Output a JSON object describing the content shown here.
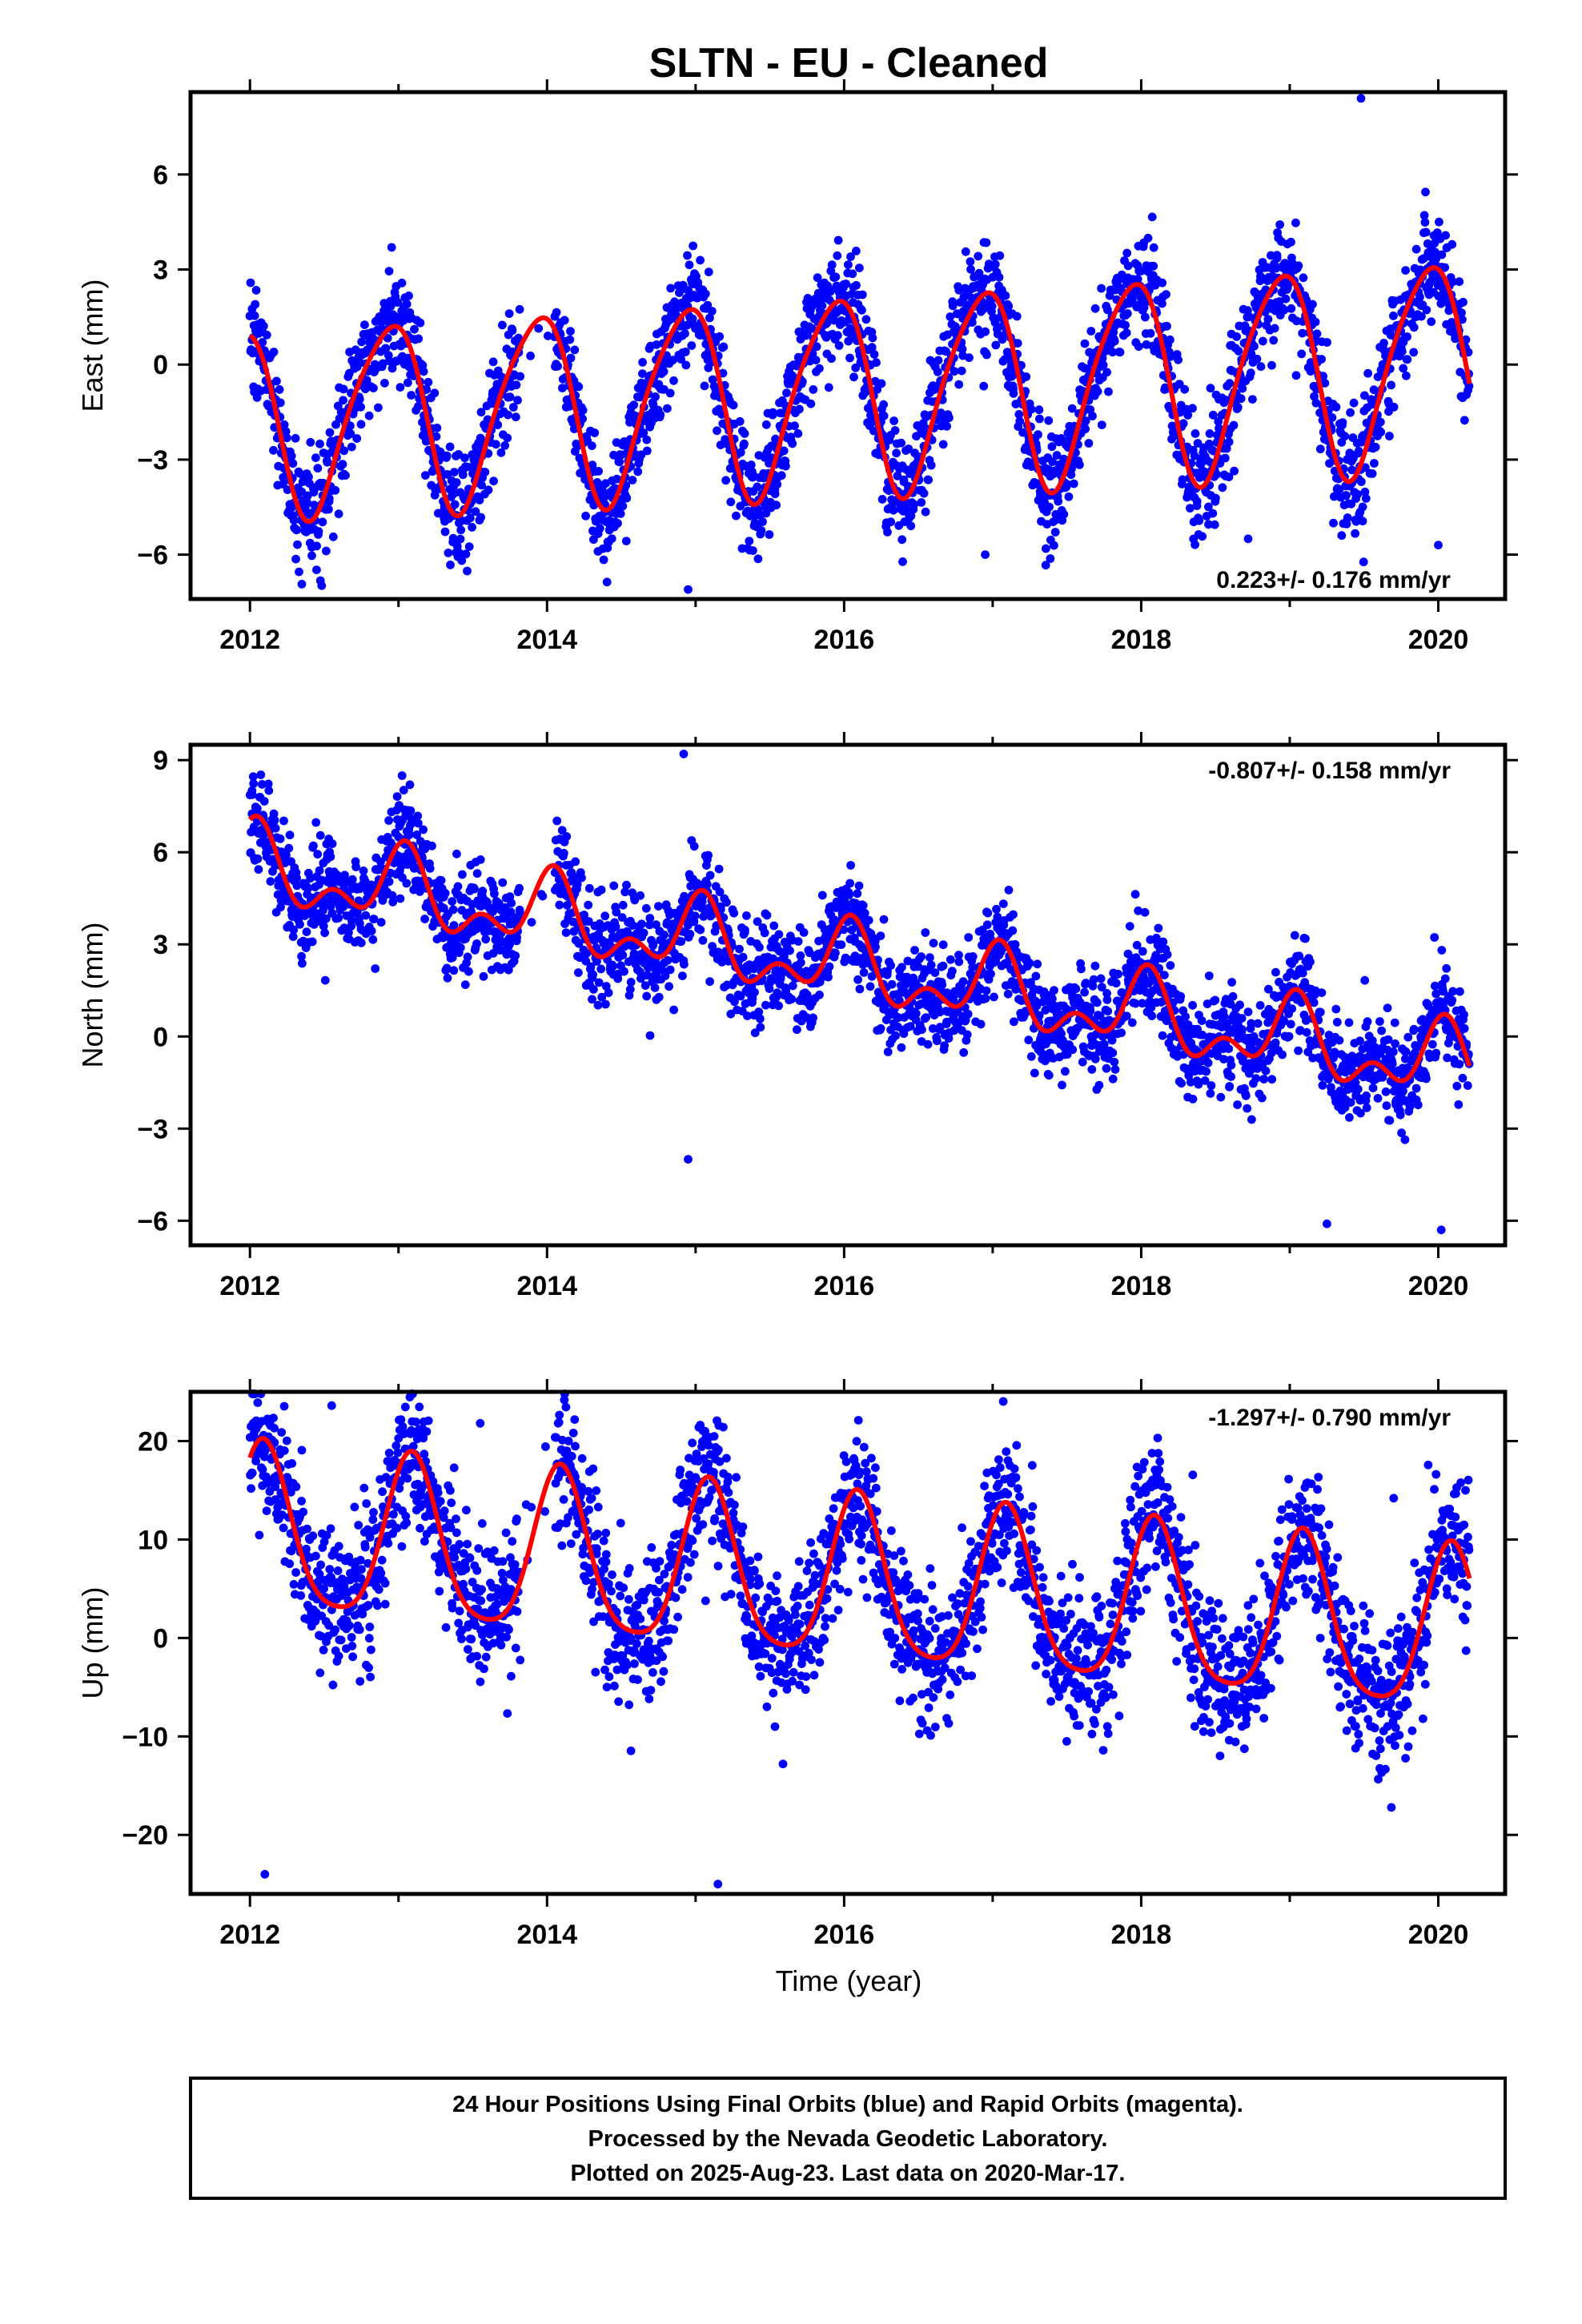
{
  "chart_data": [
    {
      "type": "scatter",
      "title": "SLTN  - EU - Cleaned",
      "ylabel": "East (mm)",
      "xlabel": "",
      "xlim": [
        2011.6,
        2020.45
      ],
      "ylim": [
        -7.4,
        8.6
      ],
      "xticks": [
        2012,
        2014,
        2016,
        2018,
        2020
      ],
      "xtick_labels": [
        "2012",
        "2014",
        "2016",
        "2018",
        "2020"
      ],
      "yticks": [
        -6,
        -3,
        0,
        3,
        6
      ],
      "ytick_labels": [
        "−6",
        "−3",
        "0",
        "3",
        "6"
      ],
      "rate_label": "0.223+/- 0.176 mm/yr",
      "rate_position": "bottom-right",
      "x_start": 2012.0,
      "x_end": 2020.21,
      "gaps": [
        [
          2013.82,
          2014.05
        ]
      ],
      "model": {
        "rate": 0.223,
        "offset": -0.9,
        "amp_annual": 2.9,
        "phase_annual": 2.05,
        "amp_semi": 0.45,
        "phase_semi": 0.3,
        "amp_growth": 0.12
      },
      "noise_sd": 0.9,
      "points_per_year": 340,
      "outliers": [
        [
          2019.48,
          8.4
        ],
        [
          2014.95,
          -7.1
        ],
        [
          2016.95,
          -6.0
        ],
        [
          2020.0,
          -5.7
        ],
        [
          2018.72,
          -5.5
        ]
      ],
      "series": [
        {
          "name": "Final Orbits",
          "color": "#0000ff"
        },
        {
          "name": "Model fit",
          "color": "#ff0000"
        }
      ]
    },
    {
      "type": "scatter",
      "title": "",
      "ylabel": "North (mm)",
      "xlabel": "",
      "xlim": [
        2011.6,
        2020.45
      ],
      "ylim": [
        -6.8,
        9.5
      ],
      "xticks": [
        2012,
        2014,
        2016,
        2018,
        2020
      ],
      "xtick_labels": [
        "2012",
        "2014",
        "2016",
        "2018",
        "2020"
      ],
      "yticks": [
        -6,
        -3,
        0,
        3,
        6,
        9
      ],
      "ytick_labels": [
        "−6",
        "−3",
        "0",
        "3",
        "6",
        "9"
      ],
      "rate_label": "-0.807+/- 0.158 mm/yr",
      "rate_position": "top-right",
      "x_start": 2012.0,
      "x_end": 2020.21,
      "gaps": [
        [
          2013.82,
          2014.05
        ]
      ],
      "model": {
        "rate": -0.807,
        "offset": 2.3,
        "amp_annual": 1.0,
        "phase_annual": 1.4,
        "amp_semi": 0.7,
        "phase_semi": 0.9,
        "amp_growth": 0.0
      },
      "noise_sd": 0.8,
      "points_per_year": 340,
      "outliers": [
        [
          2014.92,
          9.2
        ],
        [
          2014.95,
          -4.0
        ],
        [
          2012.05,
          7.0
        ],
        [
          2020.02,
          -6.3
        ],
        [
          2019.25,
          -6.1
        ]
      ],
      "series": [
        {
          "name": "Final Orbits",
          "color": "#0000ff"
        },
        {
          "name": "Model fit",
          "color": "#ff0000"
        }
      ]
    },
    {
      "type": "scatter",
      "title": "",
      "ylabel": "Up (mm)",
      "xlabel": "Time (year)",
      "xlim": [
        2011.6,
        2020.45
      ],
      "ylim": [
        -26,
        25
      ],
      "xticks": [
        2012,
        2014,
        2016,
        2018,
        2020
      ],
      "xtick_labels": [
        "2012",
        "2014",
        "2016",
        "2018",
        "2020"
      ],
      "yticks": [
        -20,
        -10,
        0,
        10,
        20
      ],
      "ytick_labels": [
        "−20",
        "−10",
        "0",
        "10",
        "20"
      ],
      "rate_label": "-1.297+/- 0.790 mm/yr",
      "rate_position": "top-right",
      "x_start": 2012.0,
      "x_end": 2020.21,
      "gaps": [
        [
          2013.82,
          2014.05
        ]
      ],
      "model": {
        "rate": -1.297,
        "offset": 5.5,
        "amp_annual": 8.2,
        "phase_annual": 1.0,
        "amp_semi": 1.5,
        "phase_semi": 0.5,
        "amp_growth": 0.0
      },
      "noise_sd": 3.6,
      "points_per_year": 340,
      "outliers": [
        [
          2012.1,
          -24.0
        ],
        [
          2015.15,
          -25.0
        ],
        [
          2012.55,
          23.6
        ],
        [
          2013.55,
          21.8
        ],
        [
          2019.7,
          14.2
        ]
      ],
      "series": [
        {
          "name": "Final Orbits",
          "color": "#0000ff"
        },
        {
          "name": "Model fit",
          "color": "#ff0000"
        }
      ]
    }
  ],
  "footer": {
    "line1": "24 Hour Positions Using Final Orbits (blue) and Rapid Orbits (magenta).",
    "line2": "Processed by the Nevada Geodetic Laboratory.",
    "line3": "Plotted on 2025-Aug-23. Last data on 2020-Mar-17."
  },
  "colors": {
    "points": "#0000ff",
    "fit": "#ff0000",
    "frame": "#000000"
  }
}
